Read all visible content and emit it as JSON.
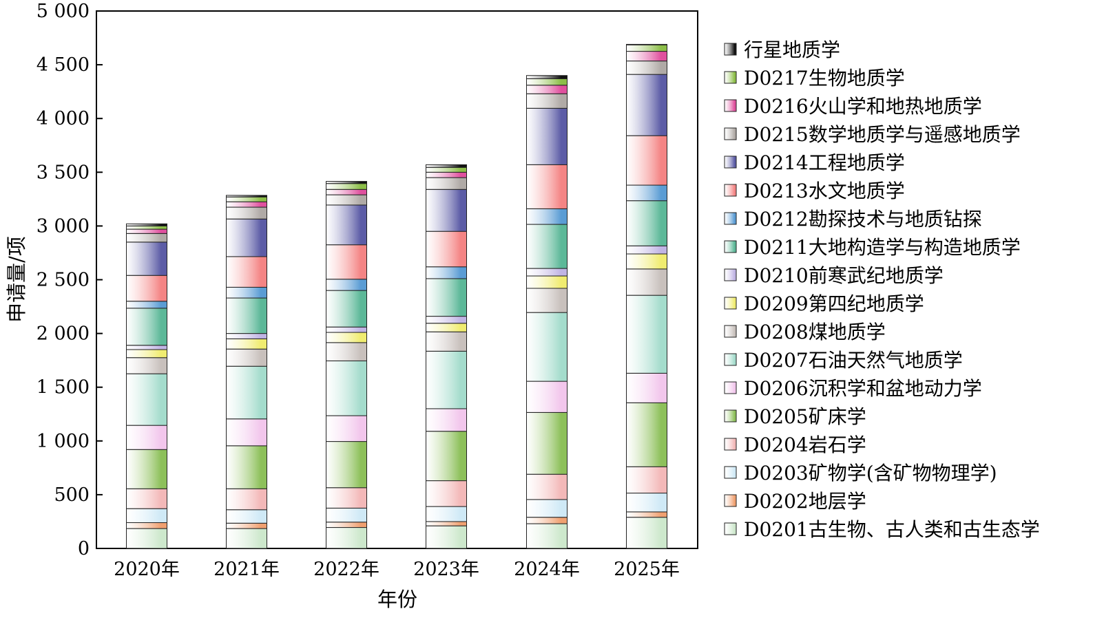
{
  "chart_data": {
    "type": "bar",
    "stacked": true,
    "xlabel": "年份",
    "ylabel": "申请量/项",
    "ylim": [
      0,
      5000
    ],
    "yticks": [
      0,
      500,
      1000,
      1500,
      2000,
      2500,
      3000,
      3500,
      4000,
      4500,
      5000
    ],
    "ytick_labels": [
      "0",
      "500",
      "1 000",
      "1 500",
      "2 000",
      "2 500",
      "3 000",
      "3 500",
      "4 000",
      "4 500",
      "5 000"
    ],
    "categories": [
      "2020年",
      "2021年",
      "2022年",
      "2023年",
      "2024年",
      "2025年"
    ],
    "legend_position": "right",
    "series": [
      {
        "name": "D0201古生物、古人类和古生态学",
        "color": "#cde8cc",
        "values": [
          185,
          185,
          195,
          210,
          230,
          290
        ]
      },
      {
        "name": "D0202地层学",
        "color": "#f0a070",
        "values": [
          55,
          50,
          50,
          40,
          60,
          50
        ]
      },
      {
        "name": "D0203矿物学(含矿物物理学)",
        "color": "#cfe9f6",
        "values": [
          130,
          125,
          130,
          140,
          165,
          175
        ]
      },
      {
        "name": "D0204岩石学",
        "color": "#f3b8b8",
        "values": [
          185,
          195,
          190,
          240,
          235,
          245
        ]
      },
      {
        "name": "D0205矿床学",
        "color": "#8dc05a",
        "values": [
          365,
          400,
          430,
          460,
          575,
          595
        ]
      },
      {
        "name": "D0206沉积学和盆地动力学",
        "color": "#f2c6ec",
        "values": [
          225,
          250,
          240,
          210,
          290,
          275
        ]
      },
      {
        "name": "D0207石油天然气地质学",
        "color": "#a4dccc",
        "values": [
          480,
          490,
          510,
          535,
          640,
          725
        ]
      },
      {
        "name": "D0208煤地质学",
        "color": "#c8c0bc",
        "values": [
          150,
          160,
          170,
          180,
          225,
          245
        ]
      },
      {
        "name": "D0209第四纪地质学",
        "color": "#f0ec70",
        "values": [
          75,
          95,
          95,
          80,
          115,
          140
        ]
      },
      {
        "name": "D0210前寒武纪地质学",
        "color": "#c0b4e4",
        "values": [
          40,
          50,
          50,
          65,
          70,
          75
        ]
      },
      {
        "name": "D0211大地构造学与构造地质学",
        "color": "#5cb898",
        "values": [
          345,
          330,
          340,
          350,
          410,
          420
        ]
      },
      {
        "name": "D0212勘探技术与地质钻探",
        "color": "#5a9cd4",
        "values": [
          65,
          100,
          105,
          110,
          145,
          145
        ]
      },
      {
        "name": "D0213水文地质学",
        "color": "#f48484",
        "values": [
          240,
          285,
          320,
          330,
          410,
          460
        ]
      },
      {
        "name": "D0214工程地质学",
        "color": "#5c5ca6",
        "values": [
          310,
          350,
          370,
          390,
          525,
          570
        ]
      },
      {
        "name": "D0215数学地质学与遥感地质学",
        "color": "#b0aaa6",
        "values": [
          80,
          110,
          95,
          110,
          135,
          125
        ]
      },
      {
        "name": "D0216火山学和地热地质学",
        "color": "#e0509e",
        "values": [
          40,
          50,
          50,
          50,
          80,
          90
        ]
      },
      {
        "name": "D0217生物地质学",
        "color": "#8cbe48",
        "values": [
          30,
          45,
          55,
          45,
          60,
          60
        ]
      },
      {
        "name": "行星地质学",
        "color": "#111111",
        "values": [
          20,
          15,
          20,
          25,
          30,
          5
        ]
      }
    ]
  }
}
